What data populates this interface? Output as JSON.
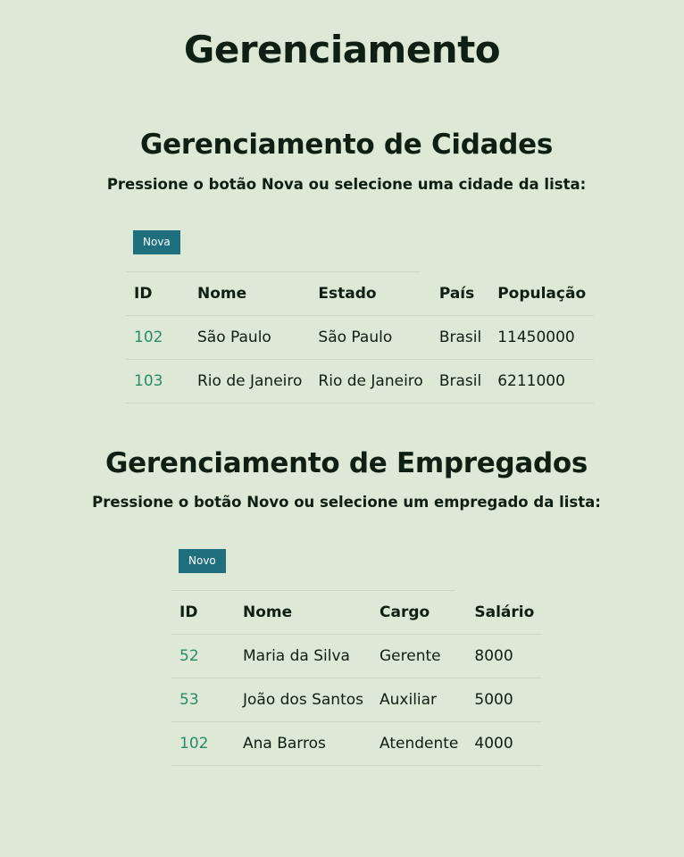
{
  "page": {
    "title": "Gerenciamento"
  },
  "cidades": {
    "title": "Gerenciamento de Cidades",
    "subtitle": "Pressione o botão Nova ou selecione uma cidade da lista:",
    "new_button": "Nova",
    "columns": [
      "ID",
      "Nome",
      "Estado",
      "País",
      "População"
    ],
    "rows": [
      {
        "id": "102",
        "nome": "São Paulo",
        "estado": "São Paulo",
        "pais": "Brasil",
        "populacao": "11450000"
      },
      {
        "id": "103",
        "nome": "Rio de Janeiro",
        "estado": "Rio de Janeiro",
        "pais": "Brasil",
        "populacao": "6211000"
      }
    ]
  },
  "empregados": {
    "title": "Gerenciamento de Empregados",
    "subtitle": "Pressione o botão Novo ou selecione um empregado da lista:",
    "new_button": "Novo",
    "columns": [
      "ID",
      "Nome",
      "Cargo",
      "Salário"
    ],
    "rows": [
      {
        "id": "52",
        "nome": "Maria da Silva",
        "cargo": "Gerente",
        "salario": "8000"
      },
      {
        "id": "53",
        "nome": "João dos Santos",
        "cargo": "Auxiliar",
        "salario": "5000"
      },
      {
        "id": "102",
        "nome": "Ana Barros",
        "cargo": "Atendente",
        "salario": "4000"
      }
    ]
  }
}
